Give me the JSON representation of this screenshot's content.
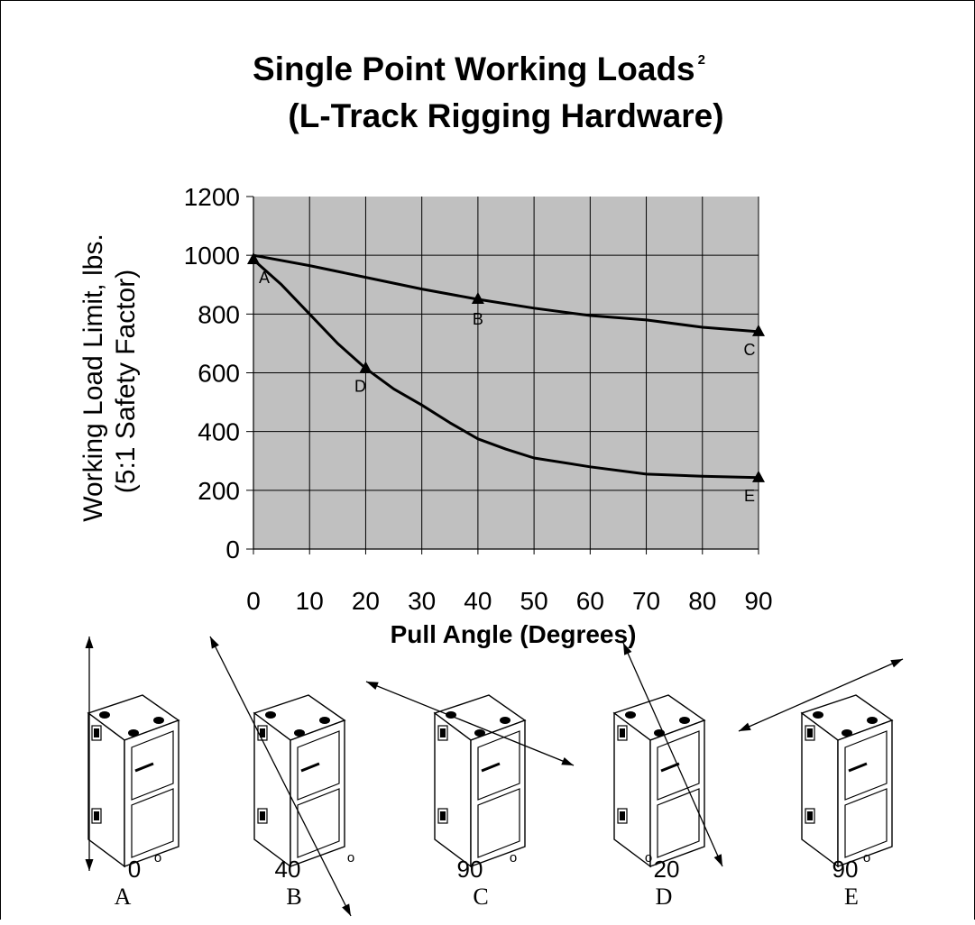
{
  "chart_data": {
    "type": "line",
    "title_line1": "Single Point Working Loads",
    "title_sup": "2",
    "title_line2": "(L-Track Rigging Hardware)",
    "xlabel": "Pull Angle (Degrees)",
    "ylabel_line1": "Working Load Limit, lbs.",
    "ylabel_line2": "(5:1 Safety Factor)",
    "xlim": [
      0,
      90
    ],
    "ylim": [
      0,
      1200
    ],
    "xticks": [
      "0",
      "10",
      "20",
      "30",
      "40",
      "50",
      "60",
      "70",
      "80",
      "90"
    ],
    "yticks": [
      "0",
      "200",
      "400",
      "600",
      "800",
      "1000",
      "1200"
    ],
    "grid": true,
    "plot_background": "#c0c0c0",
    "series": [
      {
        "x": [
          0,
          10,
          20,
          30,
          40,
          50,
          60,
          70,
          80,
          90
        ],
        "y": [
          1000,
          965,
          925,
          885,
          850,
          820,
          795,
          780,
          755,
          740
        ]
      },
      {
        "x": [
          0,
          5,
          10,
          15,
          20,
          25,
          30,
          35,
          40,
          45,
          50,
          60,
          70,
          80,
          90
        ],
        "y": [
          985,
          900,
          800,
          700,
          615,
          545,
          490,
          430,
          375,
          340,
          310,
          280,
          255,
          248,
          243
        ]
      }
    ],
    "points": [
      {
        "label": "A",
        "x": 0,
        "y": 985
      },
      {
        "label": "B",
        "x": 40,
        "y": 850
      },
      {
        "label": "C",
        "x": 90,
        "y": 740
      },
      {
        "label": "D",
        "x": 20,
        "y": 615
      },
      {
        "label": "E",
        "x": 90,
        "y": 243
      }
    ]
  },
  "diagrams": [
    {
      "angle": "0",
      "degree_sign": "o",
      "letter": "A"
    },
    {
      "angle": "40",
      "degree_sign": "o",
      "letter": "B"
    },
    {
      "angle": "90",
      "degree_sign": "o",
      "letter": "C"
    },
    {
      "angle": "20",
      "degree_sign": "o",
      "letter": "D"
    },
    {
      "angle": "90",
      "degree_sign": "o",
      "letter": "E"
    }
  ]
}
